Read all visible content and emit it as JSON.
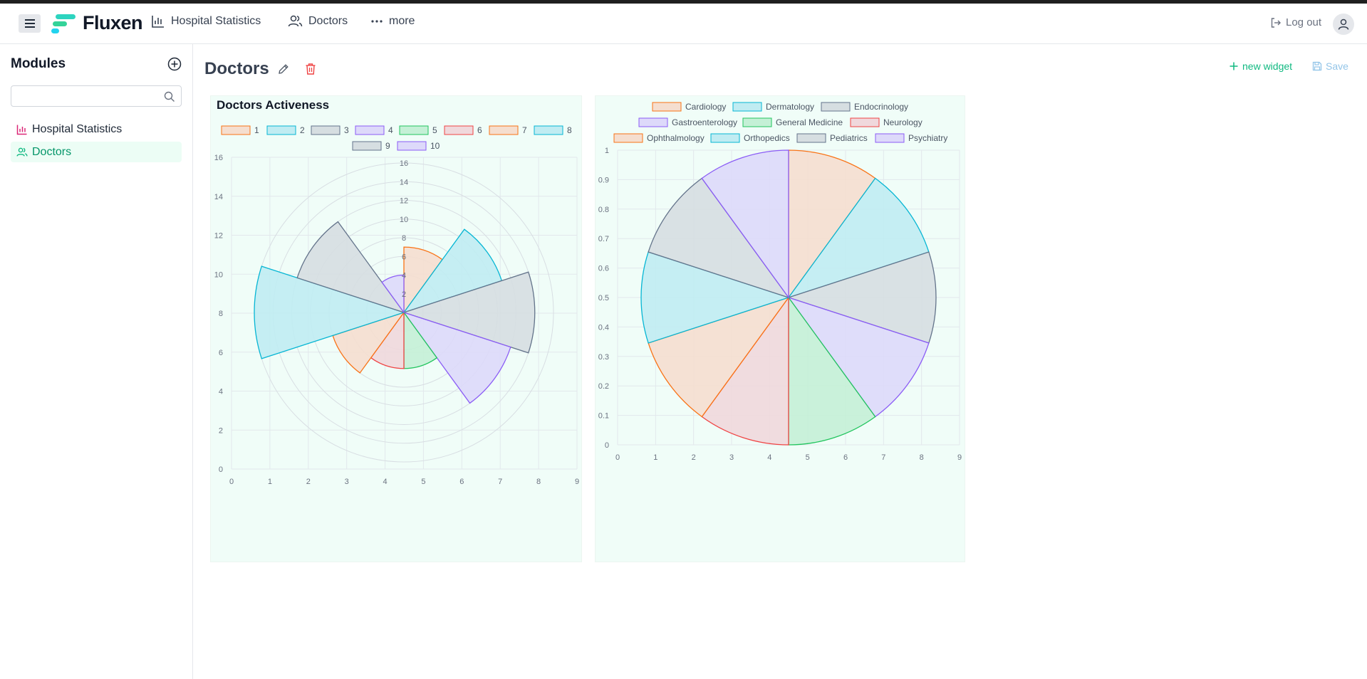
{
  "app": {
    "name": "Fluxen"
  },
  "nav": {
    "items": [
      {
        "label": "Hospital Statistics"
      },
      {
        "label": "Doctors"
      },
      {
        "label": "more"
      }
    ]
  },
  "user": {
    "logout_label": "Log out"
  },
  "sidebar": {
    "title": "Modules",
    "search": {
      "value": "",
      "placeholder": ""
    },
    "items": [
      {
        "label": "Hospital Statistics",
        "active": false
      },
      {
        "label": "Doctors",
        "active": true
      }
    ]
  },
  "page": {
    "title": "Doctors",
    "new_widget_label": "new widget",
    "save_label": "Save"
  },
  "colors": {
    "accent": "#10b981",
    "widget_bg": "#f0fdf8"
  },
  "widgets": [
    {
      "title": "Doctors Activeness"
    },
    {
      "title": ""
    }
  ],
  "chart_data": [
    {
      "type": "polarArea",
      "title": "Doctors Activeness",
      "legend": [
        "1",
        "2",
        "3",
        "4",
        "5",
        "6",
        "7",
        "8",
        "9",
        "10"
      ],
      "values": [
        7,
        11,
        14,
        12,
        6,
        6,
        8,
        16,
        12,
        4
      ],
      "radial_ticks": [
        "2",
        "4",
        "6",
        "8",
        "10",
        "12",
        "14",
        "16"
      ],
      "r_range": [
        0,
        16
      ],
      "x_ticks": [
        "0",
        "1",
        "2",
        "3",
        "4",
        "5",
        "6",
        "7",
        "8",
        "9"
      ],
      "y_ticks": [
        "0",
        "2",
        "4",
        "6",
        "8",
        "10",
        "12",
        "14",
        "16"
      ],
      "legend_position": "top"
    },
    {
      "type": "pie",
      "title": "",
      "categories": [
        "Cardiology",
        "Dermatology",
        "Endocrinology",
        "Gastroenterology",
        "General Medicine",
        "Neurology",
        "Ophthalmology",
        "Orthopedics",
        "Pediatrics",
        "Psychiatry"
      ],
      "values": [
        1,
        1,
        1,
        1,
        1,
        1,
        1,
        1,
        1,
        1
      ],
      "x_ticks": [
        "0",
        "1",
        "2",
        "3",
        "4",
        "5",
        "6",
        "7",
        "8",
        "9"
      ],
      "y_ticks": [
        "0",
        "0.1",
        "0.2",
        "0.3",
        "0.4",
        "0.5",
        "0.6",
        "0.7",
        "0.8",
        "0.9",
        "1"
      ],
      "legend_position": "top"
    }
  ],
  "palette": [
    {
      "stroke": "#f97316",
      "fill": "#f5decf"
    },
    {
      "stroke": "#06b6d4",
      "fill": "#c0ecf2"
    },
    {
      "stroke": "#64748b",
      "fill": "#d6dee1"
    },
    {
      "stroke": "#8b5cf6",
      "fill": "#ddd9fa"
    },
    {
      "stroke": "#22c55e",
      "fill": "#c4f0d6"
    },
    {
      "stroke": "#ef4444",
      "fill": "#f0d8dc"
    }
  ]
}
